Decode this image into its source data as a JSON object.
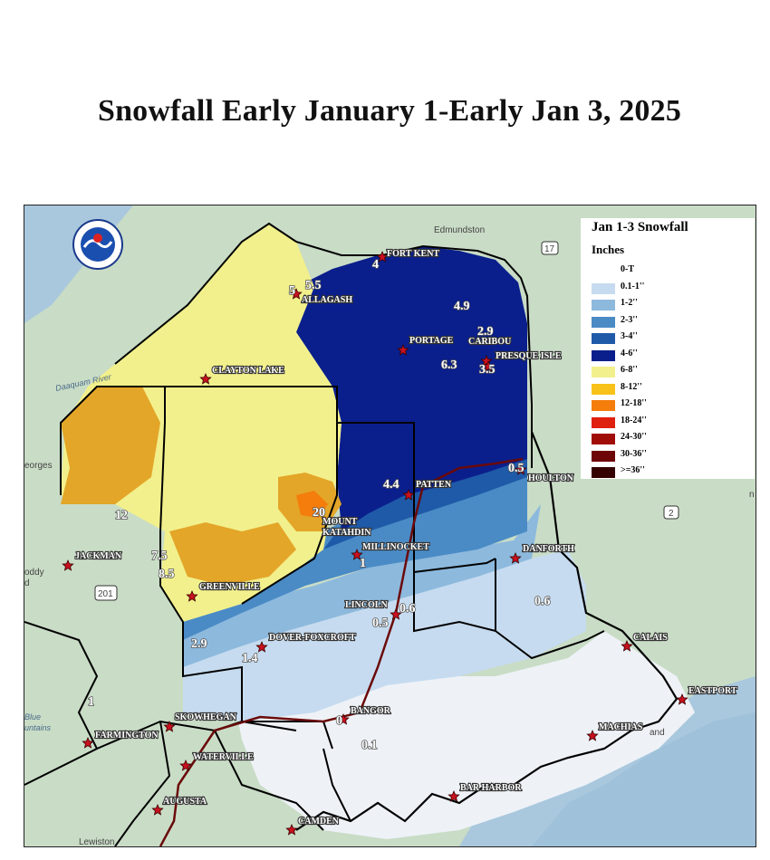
{
  "title": "Snowfall Early January 1-Early Jan 3, 2025",
  "legend": {
    "title": "Jan 1-3 Snowfall",
    "subtitle": "Inches",
    "entries": [
      {
        "label": "0-T",
        "color": "#ffffff"
      },
      {
        "label": "0.1-1''",
        "color": "#c6dbef"
      },
      {
        "label": "1-2''",
        "color": "#8db9dd"
      },
      {
        "label": "2-3''",
        "color": "#4a8bc6"
      },
      {
        "label": "3-4''",
        "color": "#1f5aa8"
      },
      {
        "label": "4-6''",
        "color": "#0a1f8c"
      },
      {
        "label": "6-8''",
        "color": "#f2f08c"
      },
      {
        "label": "8-12''",
        "color": "#f8c21b"
      },
      {
        "label": "12-18''",
        "color": "#f47d0c"
      },
      {
        "label": "18-24''",
        "color": "#e0200e"
      },
      {
        "label": "24-30''",
        "color": "#a00c08"
      },
      {
        "label": "30-36''",
        "color": "#6d0606"
      },
      {
        "label": ">=36''",
        "color": "#350202"
      }
    ]
  },
  "cities": {
    "fort_kent": "FORT KENT",
    "allagash": "ALLAGASH",
    "portage": "PORTAGE",
    "caribou": "CARIBOU",
    "presque_isle": "PRESQUE ISLE",
    "clayton_lake": "CLAYTON LAKE",
    "houlton": "HOULTON",
    "patten": "PATTEN",
    "mount_katahdin_1": "MOUNT",
    "mount_katahdin_2": "KATAHDIN",
    "millinocket": "MILLINOCKET",
    "danforth": "DANFORTH",
    "jackman": "JACKMAN",
    "greenville": "GREENVILLE",
    "lincoln": "LINCOLN",
    "calais": "CALAIS",
    "dover_foxcroft": "DOVER-FOXCROFT",
    "eastport": "EASTPORT",
    "bangor": "BANGOR",
    "skowhegan": "SKOWHEGAN",
    "machias": "MACHIAS",
    "farmington": "FARMINGTON",
    "waterville": "WATERVILLE",
    "bar_harbor": "BAR HARBOR",
    "augusta": "AUGUSTA",
    "camden": "CAMDEN"
  },
  "observations": {
    "fort_kent": "4",
    "allagash_a": "5.5",
    "allagash_b": "5",
    "caribou_area": "4.9",
    "caribou": "2.9",
    "portage": "6.3",
    "presque_isle": "3.5",
    "houlton": "0.5",
    "patten": "4.4",
    "katahdin": "20",
    "west_12": "12",
    "jackman_east_a": "7.5",
    "jackman_east_b": "8.5",
    "millinocket": "1",
    "lincoln_a": "0.6",
    "lincoln_b": "0.5",
    "danforth_south": "0.6",
    "greenville_south": "2.9",
    "dover_foxcroft": "1.4",
    "bangor": "0",
    "bangor_south": "0.1",
    "farmington_north": "1"
  },
  "geo_labels": {
    "edmundston": "Edmundston",
    "georges": "eorges",
    "daaquam": "Daaquam River",
    "blue_mountains_1": "Blue",
    "blue_mountains_2": "untains",
    "lewiston": "Lewiston",
    "roddy": "oddy",
    "pond": "d",
    "route_17": "17",
    "route_201": "201",
    "route_2": "2",
    "island": "and",
    "n_edge": "n"
  }
}
